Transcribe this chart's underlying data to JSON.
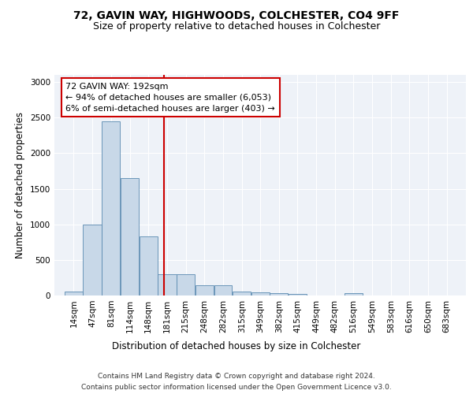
{
  "title1": "72, GAVIN WAY, HIGHWOODS, COLCHESTER, CO4 9FF",
  "title2": "Size of property relative to detached houses in Colchester",
  "xlabel": "Distribution of detached houses by size in Colchester",
  "ylabel": "Number of detached properties",
  "footnote1": "Contains HM Land Registry data © Crown copyright and database right 2024.",
  "footnote2": "Contains public sector information licensed under the Open Government Licence v3.0.",
  "annotation_line1": "72 GAVIN WAY: 192sqm",
  "annotation_line2": "← 94% of detached houses are smaller (6,053)",
  "annotation_line3": "6% of semi-detached houses are larger (403) →",
  "property_size": 192,
  "bar_labels": [
    "14sqm",
    "47sqm",
    "81sqm",
    "114sqm",
    "148sqm",
    "181sqm",
    "215sqm",
    "248sqm",
    "282sqm",
    "315sqm",
    "349sqm",
    "382sqm",
    "415sqm",
    "449sqm",
    "482sqm",
    "516sqm",
    "549sqm",
    "583sqm",
    "616sqm",
    "650sqm",
    "683sqm"
  ],
  "bar_values": [
    55,
    1000,
    2450,
    1650,
    830,
    300,
    295,
    145,
    140,
    55,
    40,
    30,
    20,
    0,
    0,
    30,
    0,
    0,
    0,
    0,
    0
  ],
  "bar_edges": [
    14,
    47,
    81,
    114,
    148,
    181,
    215,
    248,
    282,
    315,
    349,
    382,
    415,
    449,
    482,
    516,
    549,
    583,
    616,
    650,
    683,
    716
  ],
  "bar_color": "#c8d8e8",
  "bar_edge_color": "#5a8ab0",
  "vline_x": 192,
  "vline_color": "#cc0000",
  "annotation_box_color": "#cc0000",
  "ylim": [
    0,
    3100
  ],
  "yticks": [
    0,
    500,
    1000,
    1500,
    2000,
    2500,
    3000
  ],
  "background_color": "#eef2f8",
  "grid_color": "#ffffff",
  "title1_fontsize": 10,
  "title2_fontsize": 9,
  "axis_label_fontsize": 8.5,
  "tick_fontsize": 7.5,
  "annotation_fontsize": 8,
  "footnote_fontsize": 6.5
}
